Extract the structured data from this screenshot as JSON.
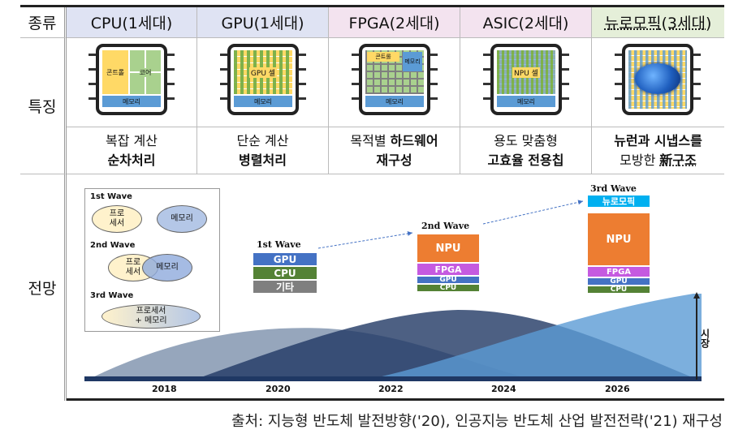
{
  "header": {
    "type_label": "종류",
    "cols": [
      "CPU(1세대)",
      "GPU(1세대)",
      "FPGA(2세대)",
      "ASIC(2세대)",
      "뉴로모픽(3세대)"
    ],
    "col_colors": [
      "#dfe3f3",
      "#dfe3f3",
      "#f3e3ef",
      "#f3e3ef",
      "#e5efd9"
    ]
  },
  "features": {
    "row_label": "특징",
    "chips": {
      "cpu": {
        "control": "콘트롤",
        "core": "코어",
        "memory": "메모리"
      },
      "gpu": {
        "cell": "GPU 셀",
        "memory": "메모리"
      },
      "fpga": {
        "control": "콘트롤",
        "memory_top": "메모리",
        "memory": "메모리"
      },
      "asic": {
        "cell": "NPU 셀",
        "memory": "메모리"
      }
    },
    "desc": [
      {
        "line1": "복잡 계산",
        "line2": "순차처리"
      },
      {
        "line1": "단순 계산",
        "line2": "병렬처리"
      },
      {
        "line1_plain": "목적별 ",
        "line1_bold": "하드웨어",
        "line2": "재구성"
      },
      {
        "line1": "용도 맞춤형",
        "line2": "고효율 전용칩"
      },
      {
        "line1": "뉴런과 시냅스를",
        "line2_plain": "모방한 ",
        "line2_bold": "新구조"
      }
    ]
  },
  "outlook": {
    "row_label": "전망",
    "legend": {
      "wave1": "1st Wave",
      "wave2": "2nd Wave",
      "wave3": "3rd Wave",
      "processor": "프로\n세서",
      "memory": "메모리",
      "processor2": "프로\n세서",
      "memory2": "메모리",
      "merged": "프로세서\n+ 메모리"
    },
    "waves": {
      "w1": {
        "label": "1st Wave",
        "stack": [
          "GPU",
          "CPU",
          "기타"
        ]
      },
      "w2": {
        "label": "2nd Wave",
        "stack": [
          "NPU",
          "FPGA",
          "GPU",
          "CPU"
        ]
      },
      "w3": {
        "label": "3rd Wave",
        "stack": [
          "뉴로모픽",
          "NPU",
          "FPGA",
          "GPU",
          "CPU"
        ]
      }
    },
    "years": [
      "2018",
      "2020",
      "2022",
      "2024",
      "2026"
    ],
    "axis_label": "시장",
    "colors": {
      "gpu": "#4472c4",
      "cpu": "#548235",
      "etc": "#7f7f7f",
      "npu": "#ed7d31",
      "fpga": "#c55ae0",
      "neuro": "#00b0f0"
    }
  },
  "source": "출처: 지능형 반도체 발전방향('20), 인공지능 반도체 산업 발전전략('21) 재구성"
}
